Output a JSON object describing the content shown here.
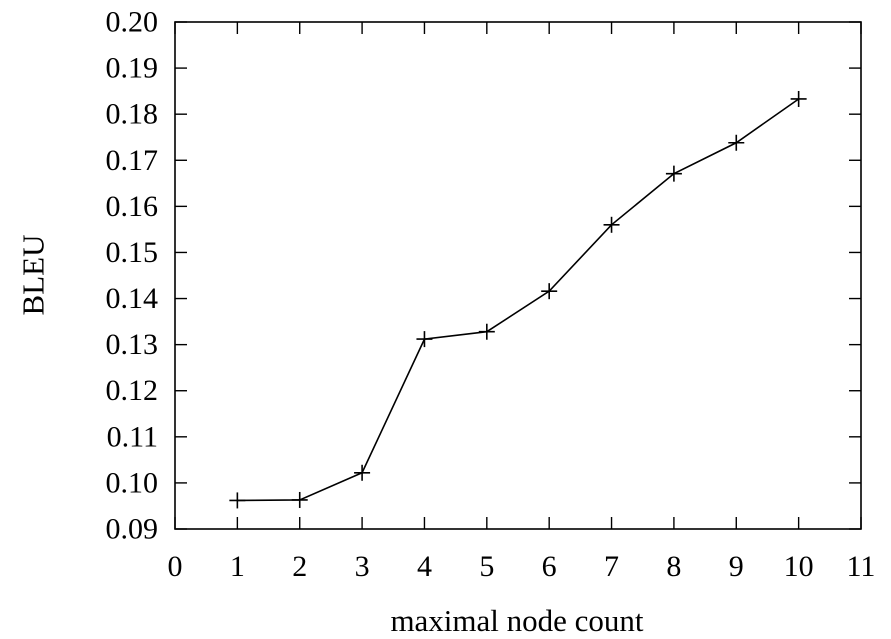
{
  "chart_data": {
    "type": "line",
    "title": "",
    "xlabel": "maximal node count",
    "ylabel": "BLEU",
    "xlim": [
      0,
      11
    ],
    "ylim": [
      0.09,
      0.2
    ],
    "x_ticks": [
      0,
      1,
      2,
      3,
      4,
      5,
      6,
      7,
      8,
      9,
      10,
      11
    ],
    "x_tick_labels": [
      "0",
      "1",
      "2",
      "3",
      "4",
      "5",
      "6",
      "7",
      "8",
      "9",
      "10",
      "11"
    ],
    "y_ticks": [
      0.09,
      0.1,
      0.11,
      0.12,
      0.13,
      0.14,
      0.15,
      0.16,
      0.17,
      0.18,
      0.19,
      0.2
    ],
    "y_tick_labels": [
      "0.09",
      "0.10",
      "0.11",
      "0.12",
      "0.13",
      "0.14",
      "0.15",
      "0.16",
      "0.17",
      "0.18",
      "0.19",
      "0.20"
    ],
    "grid": false,
    "marker": "plus",
    "line_color": "#000000",
    "series": [
      {
        "x": [
          1,
          2,
          3,
          4,
          5,
          6,
          7,
          8,
          9,
          10
        ],
        "values": [
          0.0962,
          0.0963,
          0.1022,
          0.1312,
          0.1328,
          0.1416,
          0.156,
          0.1671,
          0.1738,
          0.1833
        ]
      }
    ]
  }
}
